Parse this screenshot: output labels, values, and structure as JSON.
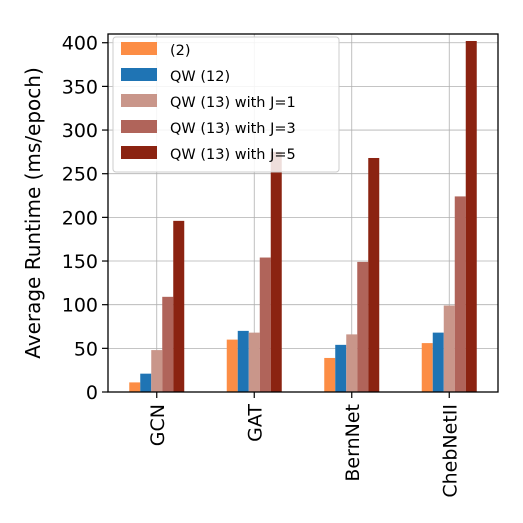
{
  "chart_data": {
    "type": "bar",
    "title": "",
    "xlabel": "",
    "ylabel": "Average Runtime (ms/epoch)",
    "categories": [
      "GCN",
      "GAT",
      "BernNet",
      "ChebNetII"
    ],
    "ylim": [
      0,
      410
    ],
    "yticks": [
      0,
      50,
      100,
      150,
      200,
      250,
      300,
      350,
      400
    ],
    "grid": true,
    "legend_position": "top-left",
    "series": [
      {
        "name": "(2)",
        "color": "#fc8d45",
        "values": [
          11,
          60,
          39,
          56
        ]
      },
      {
        "name": "QW (12)",
        "color": "#1f74b4",
        "values": [
          21,
          70,
          54,
          68
        ]
      },
      {
        "name": "QW (13) with J=1",
        "color": "#c9968a",
        "values": [
          48,
          68,
          66,
          99
        ]
      },
      {
        "name": "QW (13) with J=3",
        "color": "#b0645a",
        "values": [
          109,
          154,
          149,
          224
        ]
      },
      {
        "name": "QW (13) with J=5",
        "color": "#8b2311",
        "values": [
          196,
          275,
          268,
          402
        ]
      }
    ]
  }
}
